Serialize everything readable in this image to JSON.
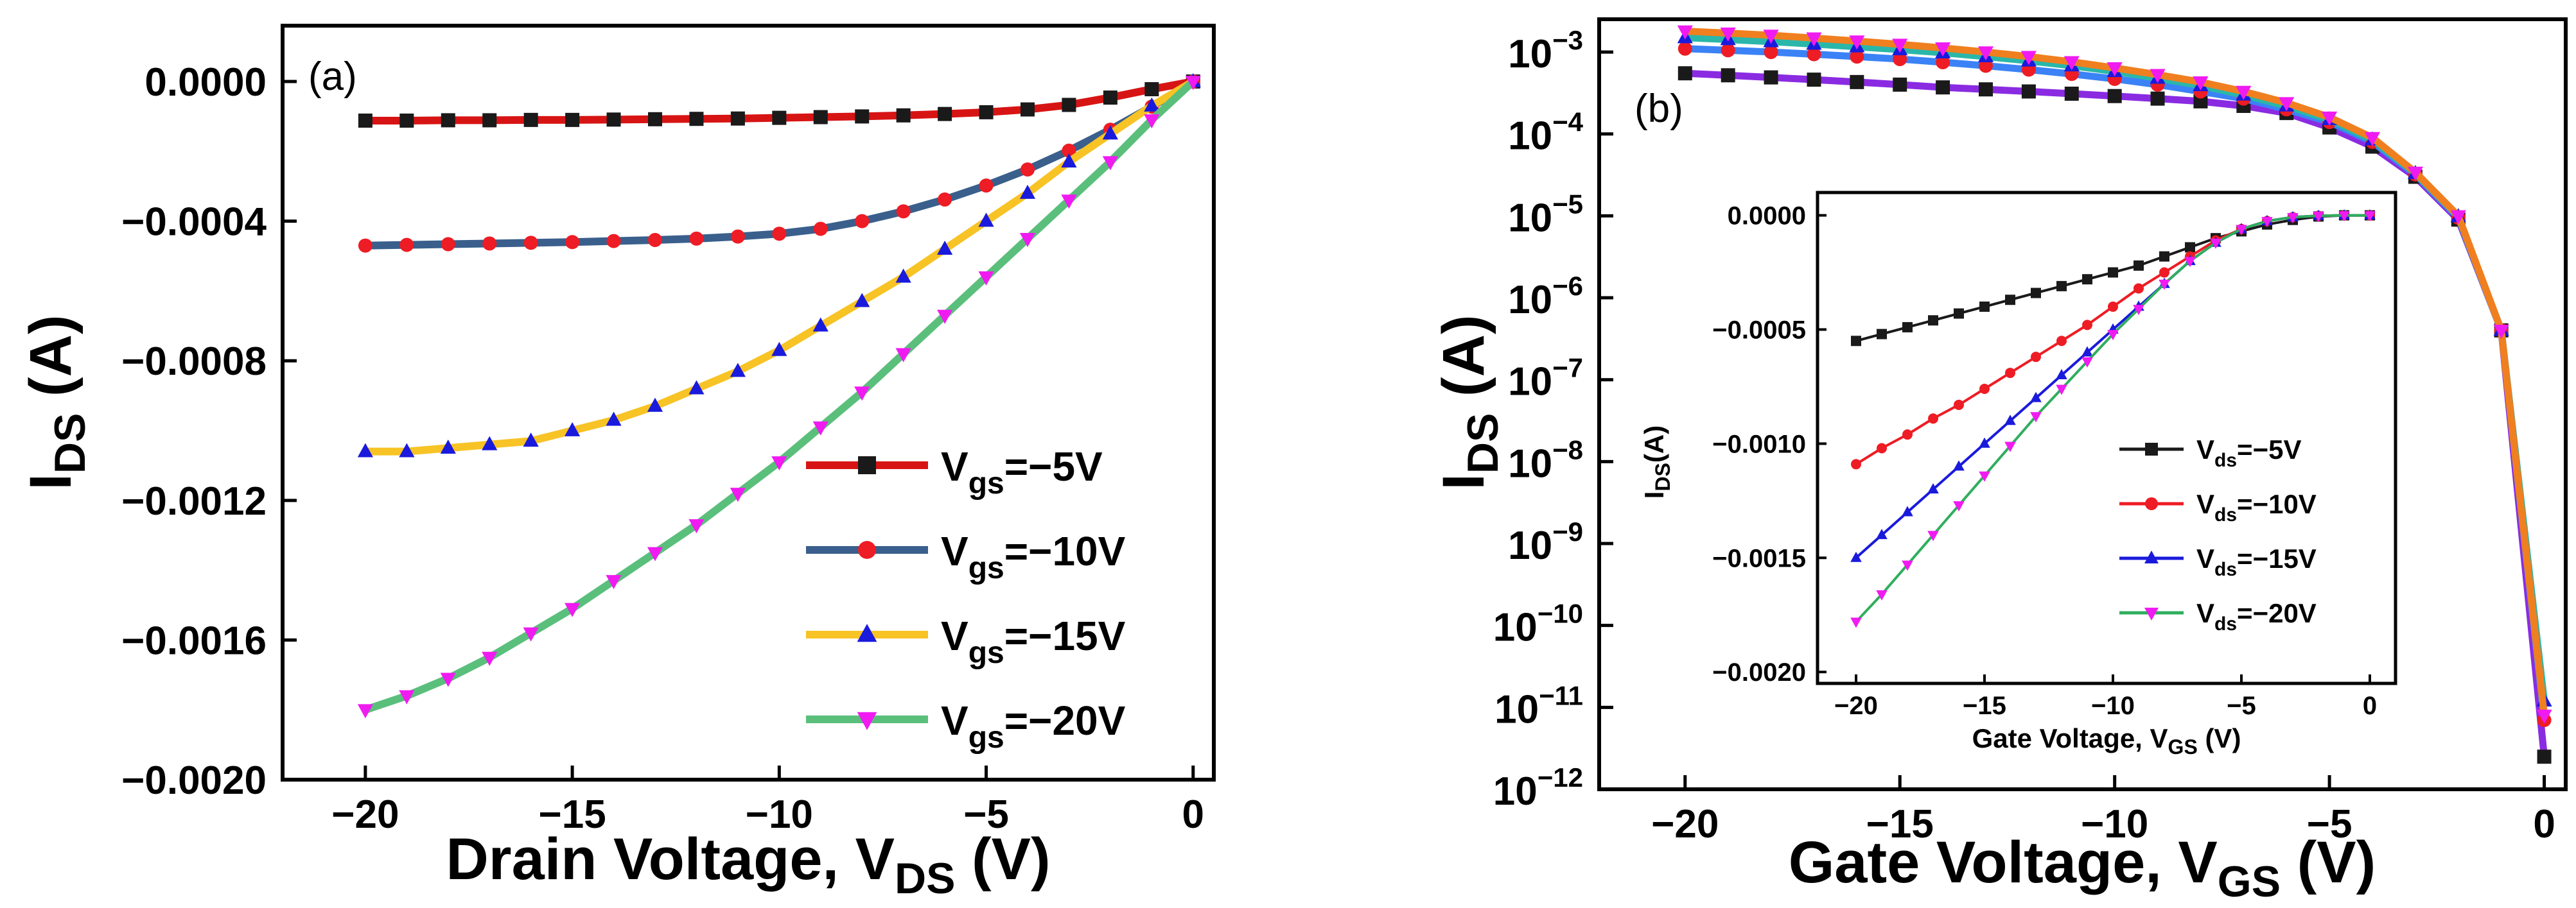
{
  "chart_data": [
    {
      "type": "line",
      "panel_label": "(a)",
      "xlabel_main": "Drain Voltage, V",
      "xlabel_sub": "DS",
      "xlabel_unit": " (V)",
      "ylabel_main": "I",
      "ylabel_sub": "DS",
      "ylabel_unit": " (A)",
      "xlim": [
        -22,
        0.5
      ],
      "ylim": [
        -0.002,
        0.00016
      ],
      "x_ticks": [
        -20,
        -15,
        -10,
        -5,
        0
      ],
      "x_tick_labels": [
        "−20",
        "−15",
        "−10",
        "−5",
        "0"
      ],
      "y_ticks": [
        0,
        -0.0004,
        -0.0008,
        -0.0012,
        -0.0016,
        -0.002
      ],
      "y_tick_labels": [
        "0.0000",
        "−0.0004",
        "−0.0008",
        "−0.0012",
        "−0.0016",
        "−0.0020"
      ],
      "legend_position": "lower-right",
      "x": [
        -20,
        -19,
        -18,
        -17,
        -16,
        -15,
        -14,
        -13,
        -12,
        -11,
        -10,
        -9,
        -8,
        -7,
        -6,
        -5,
        -4,
        -3,
        -2,
        -1,
        0
      ],
      "series": [
        {
          "name_main": "V",
          "name_sub": "gs",
          "name_value": "=−5V",
          "line_color": "#d71414",
          "marker_color": "#1a1a1a",
          "marker": "square",
          "values": [
            -0.000112,
            -0.000112,
            -0.000111,
            -0.000111,
            -0.00011,
            -0.00011,
            -0.000109,
            -0.000108,
            -0.000107,
            -0.000106,
            -0.000104,
            -0.000102,
            -0.0001,
            -9.7e-05,
            -9.3e-05,
            -8.8e-05,
            -8e-05,
            -6.7e-05,
            -4.6e-05,
            -2.2e-05,
            0
          ]
        },
        {
          "name_main": "V",
          "name_sub": "gs",
          "name_value": "=−10V",
          "line_color": "#3a5f8c",
          "marker_color": "#ee1c24",
          "marker": "circle",
          "values": [
            -0.00047,
            -0.000468,
            -0.000466,
            -0.000464,
            -0.000462,
            -0.00046,
            -0.000457,
            -0.000454,
            -0.00045,
            -0.000444,
            -0.000436,
            -0.000422,
            -0.0004,
            -0.000372,
            -0.000338,
            -0.000298,
            -0.000252,
            -0.000198,
            -0.000138,
            -7.2e-05,
            0
          ]
        },
        {
          "name_main": "V",
          "name_sub": "gs",
          "name_value": "=−15V",
          "line_color": "#f7c325",
          "marker_color": "#1a1adc",
          "marker": "triangle-up",
          "values": [
            -0.00106,
            -0.00106,
            -0.00105,
            -0.00104,
            -0.00103,
            -0.001,
            -0.00097,
            -0.00093,
            -0.00088,
            -0.00083,
            -0.00077,
            -0.0007,
            -0.00063,
            -0.00056,
            -0.00048,
            -0.0004,
            -0.00032,
            -0.00023,
            -0.00015,
            -7e-05,
            0
          ]
        },
        {
          "name_main": "V",
          "name_sub": "gs",
          "name_value": "=−20V",
          "line_color": "#5bbf7c",
          "marker_color": "#f01bf0",
          "marker": "triangle-down",
          "values": [
            -0.0018,
            -0.00176,
            -0.00171,
            -0.00165,
            -0.00158,
            -0.00151,
            -0.00143,
            -0.00135,
            -0.00127,
            -0.00118,
            -0.00109,
            -0.00099,
            -0.00089,
            -0.00078,
            -0.00067,
            -0.00056,
            -0.00045,
            -0.00034,
            -0.00023,
            -0.00011,
            0
          ]
        }
      ]
    },
    {
      "type": "line",
      "panel_label": "(b)",
      "yscale": "log",
      "xlabel_main": "Gate Voltage, V",
      "xlabel_sub": "GS",
      "xlabel_unit": " (V)",
      "ylabel_main": "I",
      "ylabel_sub": "DS",
      "ylabel_unit": " (A)",
      "xlim": [
        -22,
        0.5
      ],
      "ylim_exp": [
        -12,
        -2.6
      ],
      "x_ticks": [
        -20,
        -15,
        -10,
        -5,
        0
      ],
      "x_tick_labels": [
        "−20",
        "−15",
        "−10",
        "−5",
        "0"
      ],
      "y_tick_exps": [
        -3,
        -4,
        -5,
        -6,
        -7,
        -8,
        -9,
        -10,
        -11,
        -12
      ],
      "y_tick_labels": [
        "10",
        "10",
        "10",
        "10",
        "10",
        "10",
        "10",
        "10",
        "10",
        "10"
      ],
      "y_tick_sups": [
        "−3",
        "−4",
        "−5",
        "−6",
        "−7",
        "−8",
        "−9",
        "−10",
        "−11",
        "−12"
      ],
      "x": [
        -20,
        -19,
        -18,
        -17,
        -16,
        -15,
        -14,
        -13,
        -12,
        -11,
        -10,
        -9,
        -8,
        -7,
        -6,
        -5,
        -4,
        -3,
        -2,
        -1,
        0
      ],
      "series": [
        {
          "name": "V_ds=−5V",
          "line_color": "#8a2be2",
          "marker_color": "#1a1a1a",
          "marker": "square",
          "values": [
            0.00055,
            0.00052,
            0.00049,
            0.00046,
            0.00043,
            0.0004,
            0.00037,
            0.00035,
            0.00033,
            0.00031,
            0.00029,
            0.00027,
            0.00025,
            0.00022,
            0.00018,
            0.00012,
            7e-05,
            3e-05,
            9e-06,
            4e-07,
            2.5e-12
          ]
        },
        {
          "name": "V_ds=−10V",
          "line_color": "#3b82f6",
          "marker_color": "#ee1c24",
          "marker": "circle",
          "values": [
            0.0011,
            0.00105,
            0.001,
            0.00094,
            0.00088,
            0.00082,
            0.00075,
            0.00068,
            0.00061,
            0.00054,
            0.00047,
            0.0004,
            0.00033,
            0.00027,
            0.0002,
            0.00014,
            8e-05,
            3.2e-05,
            9.5e-06,
            4e-07,
            7e-12
          ]
        },
        {
          "name": "V_ds=−15V",
          "line_color": "#2ab7a9",
          "marker_color": "#1a1adc",
          "marker": "triangle-up",
          "values": [
            0.0015,
            0.00142,
            0.00134,
            0.00125,
            0.00116,
            0.00107,
            0.00098,
            0.00088,
            0.00078,
            0.00068,
            0.00058,
            0.00048,
            0.00039,
            0.0003,
            0.00022,
            0.00015,
            8.5e-05,
            3.3e-05,
            9.8e-06,
            4e-07,
            1.2e-11
          ]
        },
        {
          "name": "V_ds=−20V",
          "line_color": "#f07f1f",
          "marker_color": "#f01bf0",
          "marker": "triangle-down",
          "values": [
            0.0018,
            0.0017,
            0.0016,
            0.00148,
            0.00136,
            0.00124,
            0.00112,
            0.001,
            0.00088,
            0.00076,
            0.00064,
            0.00053,
            0.00043,
            0.00033,
            0.00024,
            0.00016,
            9e-05,
            3.4e-05,
            1e-05,
            4e-07,
            8e-12
          ]
        }
      ]
    },
    {
      "type": "line",
      "role": "inset",
      "xlabel_main": "Gate Voltage, V",
      "xlabel_sub": "GS",
      "xlabel_unit": " (V)",
      "ylabel_main": "I",
      "ylabel_sub": "DS",
      "ylabel_unit": "(A)",
      "xlim": [
        -21.5,
        1
      ],
      "ylim": [
        -0.00205,
        0.0001
      ],
      "x_ticks": [
        -20,
        -15,
        -10,
        -5,
        0
      ],
      "x_tick_labels": [
        "−20",
        "−15",
        "−10",
        "−5",
        "0"
      ],
      "y_ticks": [
        0,
        -0.0005,
        -0.001,
        -0.0015,
        -0.002
      ],
      "y_tick_labels": [
        "0.0000",
        "−0.0005",
        "−0.0010",
        "−0.0015",
        "−0.0020"
      ],
      "x": [
        -20,
        -19,
        -18,
        -17,
        -16,
        -15,
        -14,
        -13,
        -12,
        -11,
        -10,
        -9,
        -8,
        -7,
        -6,
        -5,
        -4,
        -3,
        -2,
        -1,
        0
      ],
      "series": [
        {
          "name_main": "V",
          "name_sub": "ds",
          "name_value": "=−5V",
          "line_color": "#1a1a1a",
          "marker_color": "#1a1a1a",
          "marker": "square",
          "values": [
            -0.00055,
            -0.00052,
            -0.00049,
            -0.00046,
            -0.00043,
            -0.0004,
            -0.00037,
            -0.00034,
            -0.00031,
            -0.00028,
            -0.00025,
            -0.00022,
            -0.00018,
            -0.00014,
            -0.0001,
            -7e-05,
            -4e-05,
            -2e-05,
            -5e-06,
            0,
            0
          ]
        },
        {
          "name_main": "V",
          "name_sub": "ds",
          "name_value": "=−10V",
          "line_color": "#ee1c24",
          "marker_color": "#ee1c24",
          "marker": "circle",
          "values": [
            -0.00109,
            -0.00102,
            -0.00096,
            -0.00089,
            -0.00083,
            -0.00076,
            -0.00069,
            -0.00062,
            -0.00055,
            -0.00048,
            -0.0004,
            -0.00032,
            -0.00025,
            -0.00018,
            -0.00011,
            -6e-05,
            -2.5e-05,
            -8e-06,
            -2e-06,
            0,
            0
          ]
        },
        {
          "name_main": "V",
          "name_sub": "ds",
          "name_value": "=−15V",
          "line_color": "#1a1adc",
          "marker_color": "#1a1adc",
          "marker": "triangle-up",
          "values": [
            -0.0015,
            -0.0014,
            -0.0013,
            -0.0012,
            -0.0011,
            -0.001,
            -0.0009,
            -0.0008,
            -0.0007,
            -0.0006,
            -0.0005,
            -0.0004,
            -0.0003,
            -0.0002,
            -0.00012,
            -6e-05,
            -2.5e-05,
            -8e-06,
            -2e-06,
            0,
            0
          ]
        },
        {
          "name_main": "V",
          "name_sub": "ds",
          "name_value": "=−20V",
          "line_color": "#2fae5d",
          "marker_color": "#f01bf0",
          "marker": "triangle-down",
          "values": [
            -0.00178,
            -0.00166,
            -0.00153,
            -0.0014,
            -0.00127,
            -0.00114,
            -0.00101,
            -0.00088,
            -0.00076,
            -0.00064,
            -0.00052,
            -0.00041,
            -0.0003,
            -0.0002,
            -0.00012,
            -6e-05,
            -2.5e-05,
            -8e-06,
            -2e-06,
            0,
            0
          ]
        }
      ]
    }
  ]
}
